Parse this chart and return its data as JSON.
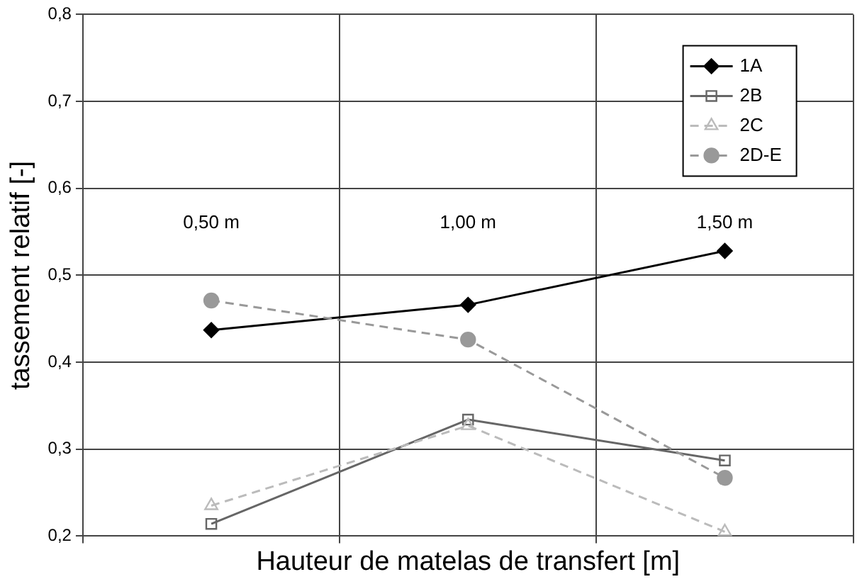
{
  "chart_data": {
    "type": "line",
    "xlabel": "Hauteur de matelas de transfert [m]",
    "ylabel": "tassement relatif [-]",
    "categories": [
      null,
      null,
      null
    ],
    "series": [
      {
        "name": "1A",
        "color": "#000000",
        "values": [
          0.437,
          0.466,
          0.528
        ],
        "marker": "diamond",
        "line_style": "solid"
      },
      {
        "name": "2B",
        "color": "#666666",
        "values": [
          0.214,
          0.334,
          0.287
        ],
        "marker": "square",
        "line_style": "solid"
      },
      {
        "name": "2C",
        "color": "#bbbbbb",
        "values": [
          0.235,
          0.327,
          0.205
        ],
        "marker": "triangle",
        "line_style": "dashed"
      },
      {
        "name": "2D-E",
        "color": "#999999",
        "values": [
          0.471,
          0.426,
          0.267
        ],
        "marker": "circle",
        "line_style": "dashed"
      }
    ],
    "ylim": [
      0.2,
      0.8
    ],
    "yticks": [
      {
        "value": 0.2,
        "label": "0,2"
      },
      {
        "value": 0.3,
        "label": "0,3"
      },
      {
        "value": 0.4,
        "label": "0,4"
      },
      {
        "value": 0.5,
        "label": "0,5"
      },
      {
        "value": 0.6,
        "label": "0,6"
      },
      {
        "value": 0.7,
        "label": "0,7"
      },
      {
        "value": 0.8,
        "label": "0,8"
      }
    ],
    "tick_labels": "y",
    "grid": true,
    "legend": "top right",
    "annotations": [
      "0,50 m",
      "1,00 m",
      "1,50 m"
    ]
  }
}
